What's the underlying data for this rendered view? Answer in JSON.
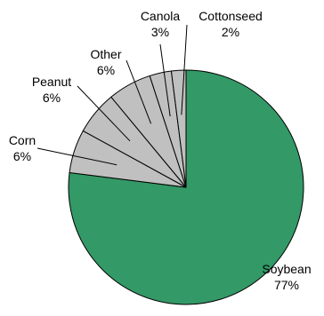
{
  "chart_data": {
    "type": "pie",
    "title": "",
    "slices": [
      {
        "name": "Soybean",
        "value": 77,
        "label": "77%",
        "color": "#339966"
      },
      {
        "name": "Corn",
        "value": 6,
        "label": "6%",
        "color": "#c0c0c0"
      },
      {
        "name": "Peanut",
        "value": 6,
        "label": "6%",
        "color": "#c0c0c0"
      },
      {
        "name": "Other",
        "value": 6,
        "label": "6%",
        "color": "#c0c0c0"
      },
      {
        "name": "Canola",
        "value": 3,
        "label": "3%",
        "color": "#c0c0c0"
      },
      {
        "name": "Cottonseed",
        "value": 2,
        "label": "2%",
        "color": "#c0c0c0"
      }
    ],
    "start": "12 o'clock",
    "direction": "clockwise",
    "legend": "none",
    "labels": "outside, with leader lines"
  }
}
